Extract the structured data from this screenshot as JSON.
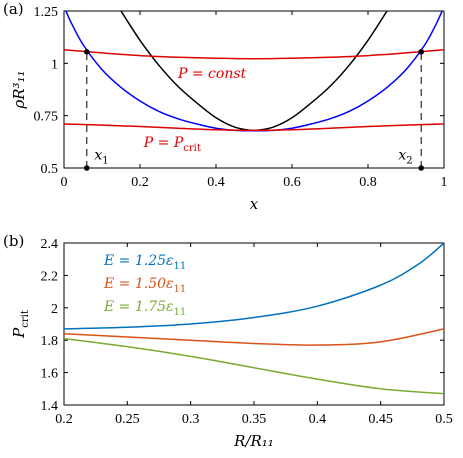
{
  "chart_data": [
    {
      "panel_label": "(a)",
      "type": "line",
      "xlabel": "x",
      "ylabel": "ρR³₁₁",
      "xlim": [
        0,
        1
      ],
      "ylim": [
        0.5,
        1.25
      ],
      "xticks": [
        "0",
        "0.2",
        "0.4",
        "0.6",
        "0.8",
        "1"
      ],
      "yticks": [
        "0.5",
        "0.75",
        "1",
        "1.25"
      ],
      "grid": false,
      "colors": {
        "black": "#000000",
        "blue": "#0000ff",
        "red": "#e00000"
      },
      "series": [
        {
          "color": "black",
          "x": [
            0.15,
            0.2,
            0.25,
            0.3,
            0.35,
            0.4,
            0.45,
            0.5,
            0.55,
            0.6,
            0.65,
            0.7,
            0.75,
            0.8,
            0.85
          ],
          "y": [
            1.25,
            1.11,
            0.99,
            0.89,
            0.81,
            0.74,
            0.695,
            0.68,
            0.695,
            0.74,
            0.81,
            0.89,
            0.99,
            1.11,
            1.25
          ]
        },
        {
          "color": "blue",
          "x": [
            0.005,
            0.02,
            0.05,
            0.1,
            0.15,
            0.2,
            0.25,
            0.3,
            0.35,
            0.4,
            0.45,
            0.5,
            0.55,
            0.6,
            0.65,
            0.7,
            0.75,
            0.8,
            0.85,
            0.9,
            0.95,
            0.98,
            0.995
          ],
          "y": [
            1.25,
            1.19,
            1.09,
            0.97,
            0.885,
            0.82,
            0.77,
            0.735,
            0.71,
            0.69,
            0.68,
            0.678,
            0.68,
            0.69,
            0.71,
            0.735,
            0.77,
            0.82,
            0.885,
            0.97,
            1.09,
            1.19,
            1.25
          ]
        },
        {
          "color": "red",
          "x": [
            0,
            0.1,
            0.2,
            0.3,
            0.4,
            0.5,
            0.6,
            0.7,
            0.8,
            0.9,
            1
          ],
          "y": [
            1.065,
            1.05,
            1.037,
            1.029,
            1.024,
            1.022,
            1.024,
            1.029,
            1.037,
            1.05,
            1.065
          ]
        },
        {
          "color": "red",
          "x": [
            0,
            0.1,
            0.2,
            0.3,
            0.4,
            0.5,
            0.6,
            0.7,
            0.8,
            0.9,
            1
          ],
          "y": [
            0.71,
            0.705,
            0.698,
            0.69,
            0.683,
            0.68,
            0.683,
            0.69,
            0.698,
            0.705,
            0.71
          ]
        }
      ],
      "markers": [
        {
          "x": 0.06,
          "y": 1.055
        },
        {
          "x": 0.94,
          "y": 1.055
        },
        {
          "x": 0.06,
          "y": 0.5
        },
        {
          "x": 0.94,
          "y": 0.5
        }
      ],
      "dashed_lines": [
        {
          "x": 0.06,
          "y0": 0.5,
          "y1": 1.055
        },
        {
          "x": 0.94,
          "y0": 0.5,
          "y1": 1.055
        }
      ],
      "annotations": [
        {
          "text": "P = const",
          "x": 0.3,
          "y": 0.93,
          "color": "red"
        },
        {
          "text": "P = P",
          "sub": "crit",
          "x": 0.21,
          "y": 0.6,
          "color": "red"
        },
        {
          "text": "x",
          "sub": "1",
          "x": 0.08,
          "y": 0.54,
          "color": "black"
        },
        {
          "text": "x",
          "sub": "2",
          "x": 0.88,
          "y": 0.54,
          "color": "black"
        }
      ]
    },
    {
      "panel_label": "(b)",
      "type": "line",
      "xlabel": "R/R₁₁",
      "ylabel": "P",
      "ylabel_sub": "crit",
      "xlim": [
        0.2,
        0.5
      ],
      "ylim": [
        1.4,
        2.4
      ],
      "xticks": [
        "0.2",
        "0.25",
        "0.3",
        "0.35",
        "0.4",
        "0.45",
        "0.5"
      ],
      "yticks": [
        "1.4",
        "1.6",
        "1.8",
        "2",
        "2.2",
        "2.4"
      ],
      "grid": false,
      "legend_placement": "top-left",
      "series": [
        {
          "name": "E = 1.25ε₁₁",
          "label_main": "E = 1.25ε",
          "label_sub": "11",
          "color": "#0072bd",
          "x": [
            0.2,
            0.25,
            0.3,
            0.35,
            0.4,
            0.45,
            0.48,
            0.5
          ],
          "y": [
            1.87,
            1.88,
            1.9,
            1.94,
            2.01,
            2.14,
            2.27,
            2.4
          ]
        },
        {
          "name": "E = 1.50ε₁₁",
          "label_main": "E = 1.50ε",
          "label_sub": "11",
          "color": "#d95319",
          "x": [
            0.2,
            0.25,
            0.3,
            0.35,
            0.4,
            0.45,
            0.5
          ],
          "y": [
            1.84,
            1.82,
            1.8,
            1.78,
            1.77,
            1.79,
            1.87
          ]
        },
        {
          "name": "E = 1.75ε₁₁",
          "label_main": "E = 1.75ε",
          "label_sub": "11",
          "color": "#77ac30",
          "x": [
            0.2,
            0.25,
            0.3,
            0.35,
            0.4,
            0.45,
            0.5
          ],
          "y": [
            1.81,
            1.76,
            1.7,
            1.63,
            1.56,
            1.5,
            1.47
          ]
        }
      ]
    }
  ]
}
